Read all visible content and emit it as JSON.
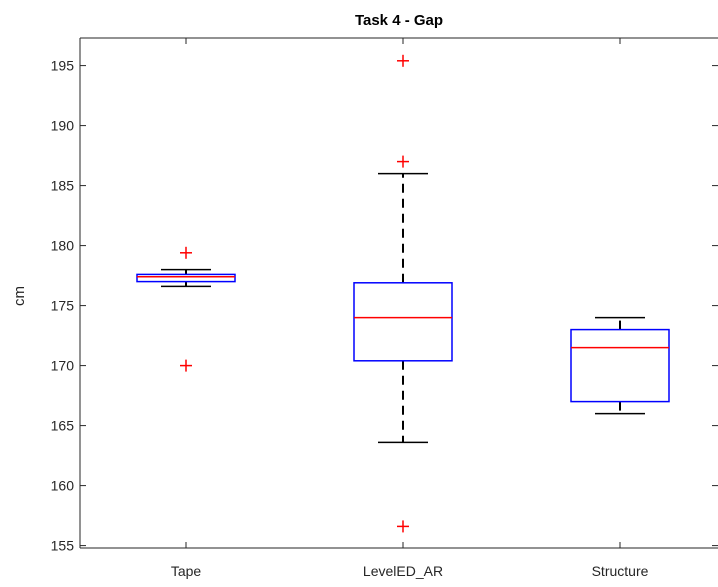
{
  "chart_data": {
    "type": "box",
    "title": "Task 4 - Gap",
    "ylabel": "cm",
    "xlabel": "",
    "ylim": [
      154.8,
      197.3
    ],
    "yticks": [
      155,
      160,
      165,
      170,
      175,
      180,
      185,
      190,
      195
    ],
    "categories": [
      "Tape",
      "LevelED_AR",
      "Structure"
    ],
    "boxes": [
      {
        "label": "Tape",
        "whisker_low": 176.6,
        "q1": 177.0,
        "median": 177.4,
        "q3": 177.6,
        "whisker_high": 178.0,
        "outliers": [
          179.4,
          170.0
        ]
      },
      {
        "label": "LevelED_AR",
        "whisker_low": 163.6,
        "q1": 170.4,
        "median": 174.0,
        "q3": 176.9,
        "whisker_high": 186.0,
        "outliers": [
          195.4,
          187.0,
          156.6
        ]
      },
      {
        "label": "Structure",
        "whisker_low": 166.0,
        "q1": 167.0,
        "median": 171.5,
        "q3": 173.0,
        "whisker_high": 174.0,
        "outliers": []
      }
    ],
    "colors": {
      "box": "#0000ff",
      "median": "#ff0000",
      "whisker": "#000000",
      "outlier": "#ff0000",
      "axis": "#262626"
    },
    "outlier_marker": "+",
    "grid": false
  }
}
